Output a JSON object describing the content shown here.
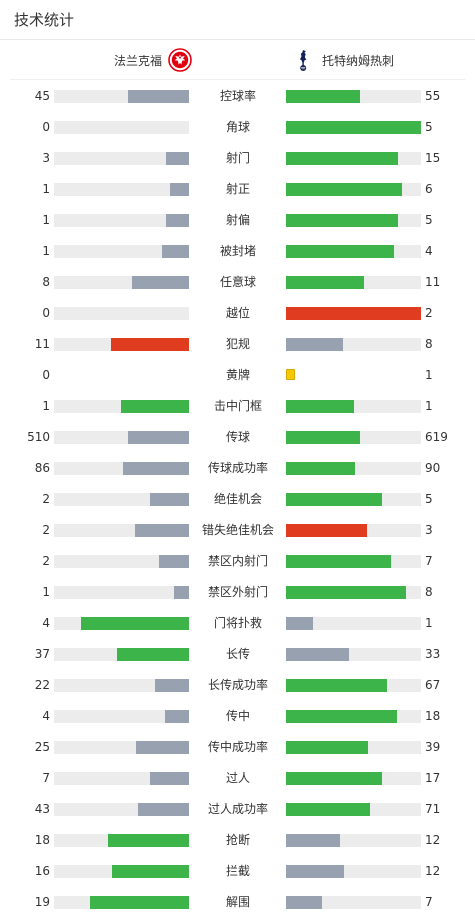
{
  "header": {
    "title": "技术统计"
  },
  "teams": {
    "home": {
      "name": "法兰克福",
      "logo_icon": "eintracht-frankfurt-eagle-icon"
    },
    "away": {
      "name": "托特纳姆热刺",
      "logo_icon": "tottenham-cockerel-icon"
    }
  },
  "colors": {
    "green": "#3cb44a",
    "gray": "#98a1b0",
    "red": "#e03c1f",
    "track": "#ececec",
    "yellow": "#f5c800"
  },
  "stats": [
    {
      "label": "控球率",
      "home": "45",
      "away": "55",
      "home_fill": 0.45,
      "away_fill": 0.55,
      "home_color": "gray",
      "away_color": "green"
    },
    {
      "label": "角球",
      "home": "0",
      "away": "5",
      "home_fill": 0,
      "away_fill": 1.0,
      "home_color": "gray",
      "away_color": "green"
    },
    {
      "label": "射门",
      "home": "3",
      "away": "15",
      "home_fill": 0.17,
      "away_fill": 0.83,
      "home_color": "gray",
      "away_color": "green"
    },
    {
      "label": "射正",
      "home": "1",
      "away": "6",
      "home_fill": 0.14,
      "away_fill": 0.86,
      "home_color": "gray",
      "away_color": "green"
    },
    {
      "label": "射偏",
      "home": "1",
      "away": "5",
      "home_fill": 0.17,
      "away_fill": 0.83,
      "home_color": "gray",
      "away_color": "green"
    },
    {
      "label": "被封堵",
      "home": "1",
      "away": "4",
      "home_fill": 0.2,
      "away_fill": 0.8,
      "home_color": "gray",
      "away_color": "green"
    },
    {
      "label": "任意球",
      "home": "8",
      "away": "11",
      "home_fill": 0.42,
      "away_fill": 0.58,
      "home_color": "gray",
      "away_color": "green"
    },
    {
      "label": "越位",
      "home": "0",
      "away": "2",
      "home_fill": 0,
      "away_fill": 1.0,
      "home_color": "gray",
      "away_color": "red"
    },
    {
      "label": "犯规",
      "home": "11",
      "away": "8",
      "home_fill": 0.58,
      "away_fill": 0.42,
      "home_color": "red",
      "away_color": "gray"
    },
    {
      "label": "黄牌",
      "home": "0",
      "away": "1",
      "type": "card"
    },
    {
      "label": "击中门框",
      "home": "1",
      "away": "1",
      "home_fill": 0.5,
      "away_fill": 0.5,
      "home_color": "green",
      "away_color": "green"
    },
    {
      "label": "传球",
      "home": "510",
      "away": "619",
      "home_fill": 0.45,
      "away_fill": 0.55,
      "home_color": "gray",
      "away_color": "green"
    },
    {
      "label": "传球成功率",
      "home": "86",
      "away": "90",
      "home_fill": 0.49,
      "away_fill": 0.51,
      "home_color": "gray",
      "away_color": "green"
    },
    {
      "label": "绝佳机会",
      "home": "2",
      "away": "5",
      "home_fill": 0.29,
      "away_fill": 0.71,
      "home_color": "gray",
      "away_color": "green"
    },
    {
      "label": "错失绝佳机会",
      "home": "2",
      "away": "3",
      "home_fill": 0.4,
      "away_fill": 0.6,
      "home_color": "gray",
      "away_color": "red"
    },
    {
      "label": "禁区内射门",
      "home": "2",
      "away": "7",
      "home_fill": 0.22,
      "away_fill": 0.78,
      "home_color": "gray",
      "away_color": "green"
    },
    {
      "label": "禁区外射门",
      "home": "1",
      "away": "8",
      "home_fill": 0.11,
      "away_fill": 0.89,
      "home_color": "gray",
      "away_color": "green"
    },
    {
      "label": "门将扑救",
      "home": "4",
      "away": "1",
      "home_fill": 0.8,
      "away_fill": 0.2,
      "home_color": "green",
      "away_color": "gray"
    },
    {
      "label": "长传",
      "home": "37",
      "away": "33",
      "home_fill": 0.53,
      "away_fill": 0.47,
      "home_color": "green",
      "away_color": "gray"
    },
    {
      "label": "长传成功率",
      "home": "22",
      "away": "67",
      "home_fill": 0.25,
      "away_fill": 0.75,
      "home_color": "gray",
      "away_color": "green"
    },
    {
      "label": "传中",
      "home": "4",
      "away": "18",
      "home_fill": 0.18,
      "away_fill": 0.82,
      "home_color": "gray",
      "away_color": "green"
    },
    {
      "label": "传中成功率",
      "home": "25",
      "away": "39",
      "home_fill": 0.39,
      "away_fill": 0.61,
      "home_color": "gray",
      "away_color": "green"
    },
    {
      "label": "过人",
      "home": "7",
      "away": "17",
      "home_fill": 0.29,
      "away_fill": 0.71,
      "home_color": "gray",
      "away_color": "green"
    },
    {
      "label": "过人成功率",
      "home": "43",
      "away": "71",
      "home_fill": 0.38,
      "away_fill": 0.62,
      "home_color": "gray",
      "away_color": "green"
    },
    {
      "label": "抢断",
      "home": "18",
      "away": "12",
      "home_fill": 0.6,
      "away_fill": 0.4,
      "home_color": "green",
      "away_color": "gray"
    },
    {
      "label": "拦截",
      "home": "16",
      "away": "12",
      "home_fill": 0.57,
      "away_fill": 0.43,
      "home_color": "green",
      "away_color": "gray"
    },
    {
      "label": "解围",
      "home": "19",
      "away": "7",
      "home_fill": 0.73,
      "away_fill": 0.27,
      "home_color": "green",
      "away_color": "gray"
    }
  ]
}
